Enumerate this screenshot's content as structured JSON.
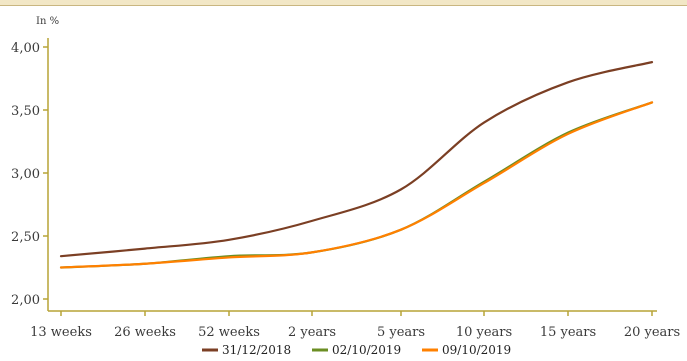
{
  "chart_data": {
    "type": "line",
    "ylabel": "In %",
    "categories": [
      "13 weeks",
      "26 weeks",
      "52 weeks",
      "2 years",
      "5 years",
      "10 years",
      "15 years",
      "20 years"
    ],
    "y_ticks": [
      "2,00",
      "2,50",
      "3,00",
      "3,50",
      "4,00"
    ],
    "ylim": [
      2.0,
      4.1
    ],
    "series": [
      {
        "name": "31/12/2018",
        "color": "#7b3f24",
        "values": [
          2.34,
          2.4,
          2.47,
          2.62,
          2.87,
          3.4,
          3.72,
          3.88
        ]
      },
      {
        "name": "02/10/2019",
        "color": "#6b8e23",
        "values": [
          2.25,
          2.28,
          2.34,
          2.37,
          2.55,
          2.93,
          3.32,
          3.56
        ]
      },
      {
        "name": "09/10/2019",
        "color": "#ff8000",
        "values": [
          2.25,
          2.28,
          2.33,
          2.37,
          2.55,
          2.92,
          3.31,
          3.56
        ]
      }
    ],
    "grid": false,
    "legend_position": "bottom-center"
  },
  "colors": {
    "axis": "#b7a437",
    "text": "#3a3a3a"
  }
}
